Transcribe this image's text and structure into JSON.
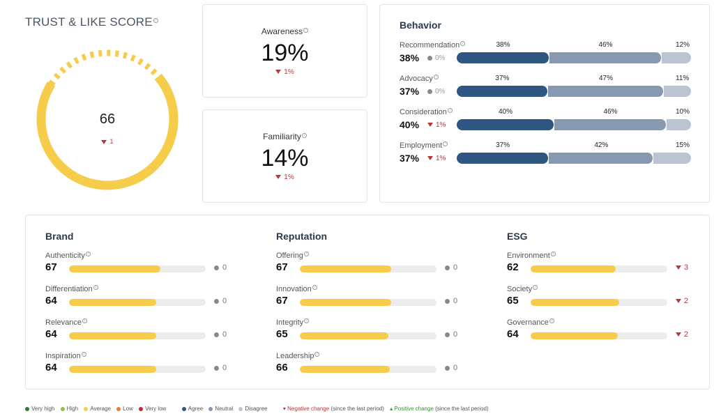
{
  "trust": {
    "title": "TRUST & LIKE SCORE",
    "score": "66",
    "delta": "1",
    "score_value": 66,
    "ring_color": "#f6cd4a"
  },
  "awareness": {
    "label": "Awareness",
    "value": "19%",
    "delta": "1%"
  },
  "familiarity": {
    "label": "Familiarity",
    "value": "14%",
    "delta": "1%"
  },
  "behavior": {
    "title": "Behavior",
    "rows": [
      {
        "label": "Recommendation",
        "value": "38%",
        "change": "0%",
        "direction": "neutral",
        "agree": 38,
        "neutral": 46,
        "disagree": 12,
        "agree_label": "38%",
        "neutral_label": "46%",
        "disagree_label": "12%"
      },
      {
        "label": "Advocacy",
        "value": "37%",
        "change": "0%",
        "direction": "neutral",
        "agree": 37,
        "neutral": 47,
        "disagree": 11,
        "agree_label": "37%",
        "neutral_label": "47%",
        "disagree_label": "11%"
      },
      {
        "label": "Consideration",
        "value": "40%",
        "change": "1%",
        "direction": "negative",
        "agree": 40,
        "neutral": 46,
        "disagree": 10,
        "agree_label": "40%",
        "neutral_label": "46%",
        "disagree_label": "10%"
      },
      {
        "label": "Employment",
        "value": "37%",
        "change": "1%",
        "direction": "negative",
        "agree": 37,
        "neutral": 42,
        "disagree": 15,
        "agree_label": "37%",
        "neutral_label": "42%",
        "disagree_label": "15%"
      }
    ]
  },
  "brand": {
    "title": "Brand",
    "rows": [
      {
        "label": "Authenticity",
        "value": "67",
        "score": 67,
        "change": "0",
        "direction": "neutral"
      },
      {
        "label": "Differentiation",
        "value": "64",
        "score": 64,
        "change": "0",
        "direction": "neutral"
      },
      {
        "label": "Relevance",
        "value": "64",
        "score": 64,
        "change": "0",
        "direction": "neutral"
      },
      {
        "label": "Inspiration",
        "value": "64",
        "score": 64,
        "change": "0",
        "direction": "neutral"
      }
    ]
  },
  "reputation": {
    "title": "Reputation",
    "rows": [
      {
        "label": "Offering",
        "value": "67",
        "score": 67,
        "change": "0",
        "direction": "neutral"
      },
      {
        "label": "Innovation",
        "value": "67",
        "score": 67,
        "change": "0",
        "direction": "neutral"
      },
      {
        "label": "Integrity",
        "value": "65",
        "score": 65,
        "change": "0",
        "direction": "neutral"
      },
      {
        "label": "Leadership",
        "value": "66",
        "score": 66,
        "change": "0",
        "direction": "neutral"
      }
    ]
  },
  "esg": {
    "title": "ESG",
    "rows": [
      {
        "label": "Environment",
        "value": "62",
        "score": 62,
        "change": "3",
        "direction": "negative"
      },
      {
        "label": "Society",
        "value": "65",
        "score": 65,
        "change": "2",
        "direction": "negative"
      },
      {
        "label": "Governance",
        "value": "64",
        "score": 64,
        "change": "2",
        "direction": "negative"
      }
    ]
  },
  "legend": {
    "very_high": "Very high",
    "high": "High",
    "average": "Average",
    "low": "Low",
    "very_low": "Very low",
    "agree": "Agree",
    "neutral": "Neutral",
    "disagree": "Disagree",
    "negative_change": "Negative change",
    "since_1": "(since the last period)",
    "positive_change": "Positive change",
    "since_2": "(since the last period)"
  },
  "colors": {
    "very_high": "#2e7d32",
    "high": "#8bc34a",
    "average": "#f6cd4a",
    "low": "#ef7a2e",
    "very_low": "#c62828",
    "agree": "#2f5781",
    "neutral": "#8898b0",
    "disagree": "#bcc3d3"
  }
}
